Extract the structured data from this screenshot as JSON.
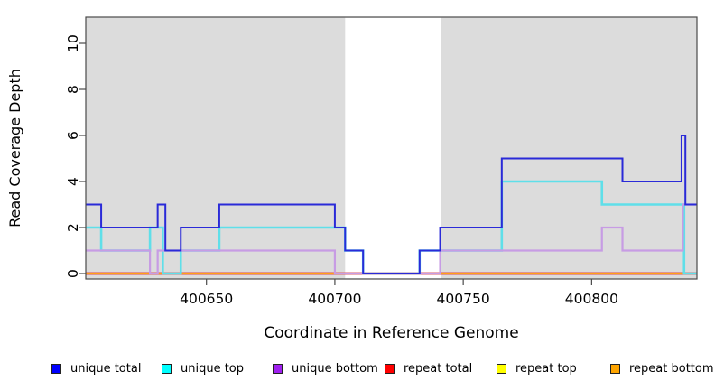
{
  "chart_data": {
    "type": "line",
    "style": "step-after",
    "title": "",
    "xlabel": "Coordinate in Reference Genome",
    "ylabel": "Read Coverage Depth",
    "xlim": [
      400603,
      400841
    ],
    "ylim": [
      0,
      11.2
    ],
    "x_ticks": [
      400650,
      400700,
      400750,
      400800
    ],
    "y_ticks": [
      0,
      2,
      4,
      6,
      8,
      10
    ],
    "grid": false,
    "plot_bg": "#dcdcdc",
    "masked_region_bg": "#ffffff",
    "masked_region": [
      400704,
      400741.5
    ],
    "border_color": "#4a4a4a",
    "legend_position": "bottom",
    "draw_order": [
      3,
      4,
      5,
      1,
      2,
      0
    ],
    "x_end": 400841,
    "series": [
      {
        "name": "unique total",
        "legend_color": "#0000ff",
        "line_color": "#2a2ad8",
        "line_width": 2,
        "steps": [
          [
            400603,
            3
          ],
          [
            400609,
            2
          ],
          [
            400631,
            3
          ],
          [
            400634,
            1
          ],
          [
            400640,
            2
          ],
          [
            400655,
            3
          ],
          [
            400700,
            2
          ],
          [
            400704,
            1
          ],
          [
            400711,
            0
          ],
          [
            400733,
            1
          ],
          [
            400741,
            2
          ],
          [
            400765,
            5
          ],
          [
            400812,
            4
          ],
          [
            400835,
            6
          ],
          [
            400836.5,
            3
          ]
        ]
      },
      {
        "name": "unique top",
        "legend_color": "#00ffff",
        "line_color": "#5fdfe9",
        "line_width": 2.6,
        "steps": [
          [
            400603,
            2
          ],
          [
            400609,
            1
          ],
          [
            400628,
            2
          ],
          [
            400633,
            0
          ],
          [
            400640,
            1
          ],
          [
            400655,
            2
          ],
          [
            400704,
            1
          ],
          [
            400711,
            0
          ],
          [
            400733,
            1
          ],
          [
            400765,
            4
          ],
          [
            400804,
            3
          ],
          [
            400836,
            0
          ]
        ]
      },
      {
        "name": "unique bottom",
        "legend_color": "#a020f0",
        "line_color": "#c79ce4",
        "line_width": 2.2,
        "steps": [
          [
            400603,
            1
          ],
          [
            400628,
            0
          ],
          [
            400631,
            1
          ],
          [
            400700,
            0
          ],
          [
            400741,
            1
          ],
          [
            400804,
            2
          ],
          [
            400812,
            1
          ],
          [
            400835.5,
            3
          ]
        ]
      },
      {
        "name": "repeat total",
        "legend_color": "#ff0000",
        "line_color": "#e14b4b",
        "line_width": 3,
        "steps": [
          [
            400603,
            0
          ]
        ]
      },
      {
        "name": "repeat top",
        "legend_color": "#ffff00",
        "line_color": "#ffff00",
        "line_width": 1.6,
        "steps": [
          [
            400603,
            0
          ]
        ]
      },
      {
        "name": "repeat bottom",
        "legend_color": "#ffa500",
        "line_color": "#ff9f17",
        "line_width": 2,
        "steps": [
          [
            400603,
            0
          ]
        ]
      }
    ]
  }
}
